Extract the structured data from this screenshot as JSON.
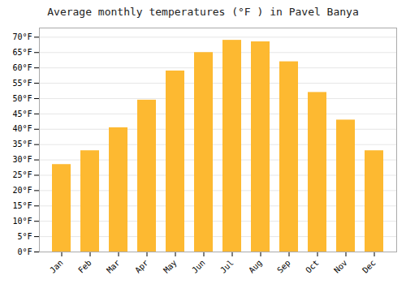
{
  "chart_data": {
    "type": "bar",
    "title": "Average monthly temperatures (°F ) in Pavel Banya",
    "categories": [
      "Jan",
      "Feb",
      "Mar",
      "Apr",
      "May",
      "Jun",
      "Jul",
      "Aug",
      "Sep",
      "Oct",
      "Nov",
      "Dec"
    ],
    "values": [
      28.5,
      33.0,
      40.5,
      49.5,
      59.0,
      65.0,
      69.0,
      68.5,
      62.0,
      52.0,
      43.0,
      33.0
    ],
    "color": "#FDB931",
    "ylim": [
      0,
      73
    ],
    "yticks": [
      {
        "value": 0,
        "label": "0°F"
      },
      {
        "value": 5,
        "label": "5°F"
      },
      {
        "value": 10,
        "label": "10°F"
      },
      {
        "value": 15,
        "label": "15°F"
      },
      {
        "value": 20,
        "label": "20°F"
      },
      {
        "value": 25,
        "label": "25°F"
      },
      {
        "value": 30,
        "label": "30°F"
      },
      {
        "value": 35,
        "label": "35°F"
      },
      {
        "value": 40,
        "label": "40°F"
      },
      {
        "value": 45,
        "label": "45°F"
      },
      {
        "value": 50,
        "label": "50°F"
      },
      {
        "value": 55,
        "label": "55°F"
      },
      {
        "value": 60,
        "label": "60°F"
      },
      {
        "value": 65,
        "label": "65°F"
      },
      {
        "value": 70,
        "label": "70°F"
      }
    ],
    "grid": true
  }
}
